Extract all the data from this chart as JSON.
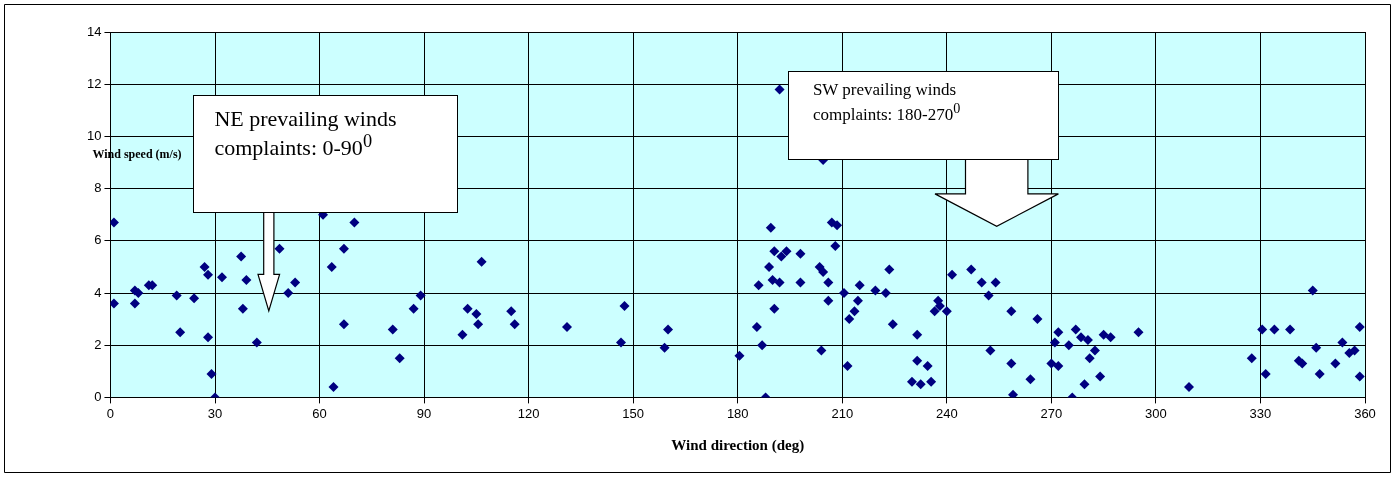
{
  "chart_data": {
    "type": "scatter",
    "xlabel": "Wind direction (deg)",
    "ylabel": "Wind speed (m/s)",
    "annotations": [
      "NE prevailing winds complaints: 0-90$^{0}$",
      "SW prevailing winds complaints: 180-270$^{0}$"
    ],
    "marker": "diamond",
    "grid": true,
    "xlim": [
      0,
      360
    ],
    "xticks": [
      0,
      30,
      60,
      90,
      120,
      150,
      180,
      210,
      240,
      270,
      300,
      330,
      360
    ],
    "ylim": [
      0,
      14
    ],
    "yticks": [
      0,
      2,
      4,
      6,
      8,
      10,
      12,
      14
    ],
    "series": [
      {
        "color": "#000080",
        "x": [
          1,
          1,
          7,
          8,
          7,
          11,
          12,
          19,
          20,
          24,
          27,
          28,
          28,
          29,
          30,
          32,
          37.5,
          38,
          39,
          42,
          48.5,
          51,
          53,
          61,
          63.5,
          64,
          67,
          67,
          70,
          81,
          83,
          87,
          89,
          106.5,
          101,
          102.5,
          105,
          105.5,
          115,
          116,
          131,
          146.5,
          147.5,
          159,
          160,
          180.5,
          192,
          204.5,
          189.5,
          190.5,
          192.5,
          194,
          198,
          189,
          190,
          192,
          198,
          186,
          190.5,
          185.5,
          187,
          188,
          203.5,
          204.5,
          206,
          206,
          207,
          208.5,
          208,
          204,
          210.5,
          214.5,
          215,
          213.5,
          212,
          211.5,
          219.5,
          222.5,
          223.5,
          224.5,
          231.5,
          231.5,
          234.5,
          230,
          232.5,
          235.5,
          237.5,
          238,
          236.5,
          240,
          241.5,
          247,
          250,
          254,
          252,
          258.5,
          252.5,
          258.5,
          259,
          264,
          266,
          272,
          271,
          275,
          270,
          272,
          277,
          278.5,
          280.5,
          282.5,
          281,
          285,
          287,
          295,
          279.5,
          284,
          276,
          309.5,
          327.5,
          330.5,
          334,
          338.5,
          331.5,
          345,
          341,
          342,
          346,
          347,
          351.5,
          353.5,
          355.5,
          357,
          358.5,
          358.5
        ],
        "values": [
          6.7,
          3.6,
          4.1,
          4,
          3.6,
          4.3,
          4.3,
          3.9,
          2.5,
          3.8,
          5,
          4.7,
          2.3,
          0.9,
          0,
          4.6,
          5.4,
          3.4,
          4.5,
          2.1,
          5.7,
          4,
          4.4,
          7,
          5,
          0.4,
          5.7,
          2.8,
          6.7,
          2.6,
          1.5,
          3.4,
          3.9,
          5.2,
          2.4,
          3.4,
          3.2,
          2.8,
          3.3,
          2.8,
          2.7,
          2.1,
          3.5,
          1.9,
          2.6,
          1.6,
          11.8,
          9.1,
          6.5,
          5.6,
          5.4,
          5.6,
          5.5,
          5,
          4.5,
          4.4,
          4.4,
          4.3,
          3.4,
          2.7,
          2,
          0,
          5,
          4.8,
          4.4,
          3.7,
          6.7,
          6.6,
          5.8,
          1.8,
          4,
          3.7,
          4.3,
          3.3,
          3,
          1.2,
          4.1,
          4,
          4.9,
          2.8,
          2.4,
          1.4,
          1.2,
          0.6,
          0.5,
          0.6,
          3.7,
          3.5,
          3.3,
          3.3,
          4.7,
          4.9,
          4.4,
          4.4,
          3.9,
          3.3,
          1.8,
          1.3,
          0.1,
          0.7,
          3,
          2.5,
          2.1,
          2,
          1.3,
          1.2,
          2.6,
          2.3,
          2.2,
          1.8,
          1.5,
          2.4,
          2.3,
          2.5,
          0.5,
          0.8,
          0,
          0.4,
          1.5,
          2.6,
          2.6,
          2.6,
          0.9,
          4.1,
          1.4,
          1.3,
          1.9,
          0.9,
          1.3,
          2.1,
          1.7,
          1.8,
          2.7,
          0.8
        ]
      }
    ]
  }
}
